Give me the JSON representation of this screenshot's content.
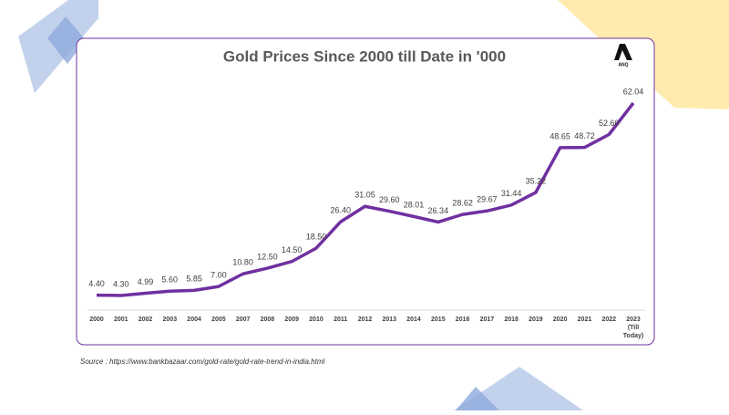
{
  "chart_data": {
    "type": "line",
    "title": "Gold Prices Since 2000 till Date in '000",
    "categories": [
      "2000",
      "2001",
      "2002",
      "2003",
      "2004",
      "2005",
      "2007",
      "2008",
      "2009",
      "2010",
      "2011",
      "2012",
      "2013",
      "2014",
      "2015",
      "2016",
      "2017",
      "2018",
      "2019",
      "2020",
      "2021",
      "2022",
      "2023 (Till Today)"
    ],
    "series": [
      {
        "name": "Gold Price",
        "color": "#7030a0",
        "values": [
          4.4,
          4.3,
          4.99,
          5.6,
          5.85,
          7.0,
          10.8,
          12.5,
          14.5,
          18.5,
          26.4,
          31.05,
          29.6,
          28.01,
          26.34,
          28.62,
          29.67,
          31.44,
          35.22,
          48.65,
          48.72,
          52.6,
          62.04
        ],
        "value_labels": [
          "4.40",
          "4.30",
          "4.99",
          "5.60",
          "5.85",
          "7.00",
          "10.80",
          "12.50",
          "14.50",
          "18.50",
          "26.40",
          "31.05",
          "29.60",
          "28.01",
          "26.34",
          "28.62",
          "29.67",
          "31.44",
          "35.22",
          "48.65",
          "48.72",
          "52.60",
          "62.04"
        ]
      }
    ]
  },
  "logo": "ANQ",
  "source": "Source : https://www.bankbazaar.com/gold-rate/gold-rate-trend-in-india.html"
}
